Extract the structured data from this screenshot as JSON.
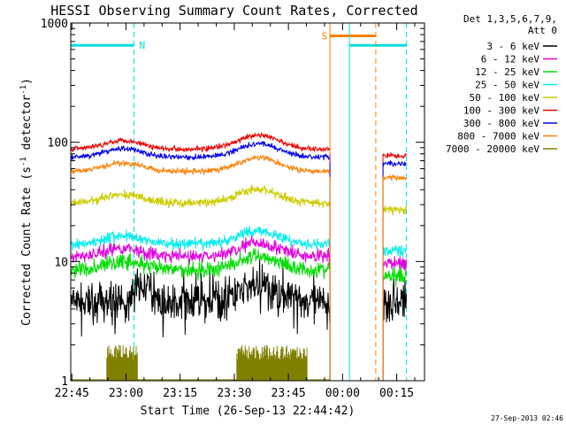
{
  "chart_data": {
    "type": "line",
    "title": "HESSI Observing Summary Count Rates, Corrected",
    "xlabel": "Start Time (26-Sep-13 22:44:42)",
    "ylabel_main": "Corrected Count Rate (s",
    "ylabel_sup1": "-1",
    "ylabel_mid": " detector",
    "ylabel_sup2": "-1",
    "ylabel_end": ")",
    "y_scale": "log",
    "ylim": [
      1,
      1000
    ],
    "xlim_minutes": [
      0,
      98
    ],
    "y_ticks": [
      {
        "value": 1,
        "label": "1"
      },
      {
        "value": 10,
        "label": "10"
      },
      {
        "value": 100,
        "label": "100"
      },
      {
        "value": 1000,
        "label": "1000"
      }
    ],
    "x_ticks": [
      {
        "minute": 0.3,
        "label": "22:45"
      },
      {
        "minute": 15.3,
        "label": "23:00"
      },
      {
        "minute": 30.3,
        "label": "23:15"
      },
      {
        "minute": 45.3,
        "label": "23:30"
      },
      {
        "minute": 60.3,
        "label": "23:45"
      },
      {
        "minute": 75.3,
        "label": "00:00"
      },
      {
        "minute": 90.3,
        "label": "00:15"
      }
    ],
    "legend_header": [
      "Det 1,3,5,6,7,9,",
      "Att 0"
    ],
    "legend_position": "right",
    "series": [
      {
        "name": "3 - 6 keV",
        "color": "#000000",
        "base": 4.5,
        "noise": 0.5
      },
      {
        "name": "6 - 12 keV",
        "color": "#e000e0",
        "base": 11,
        "noise": 0.12
      },
      {
        "name": "12 - 25 keV",
        "color": "#00dd00",
        "base": 8.5,
        "noise": 0.15
      },
      {
        "name": "25 - 50 keV",
        "color": "#00eeee",
        "base": 14,
        "noise": 0.1
      },
      {
        "name": "50 - 100 keV",
        "color": "#cccc00",
        "base": 31,
        "noise": 0.08
      },
      {
        "name": "100 - 300 keV",
        "color": "#ee0000",
        "base": 88,
        "noise": 0.05
      },
      {
        "name": "300 - 800 keV",
        "color": "#0000ee",
        "base": 75,
        "noise": 0.05
      },
      {
        "name": "800 - 7000 keV",
        "color": "#ff7f00",
        "base": 57,
        "noise": 0.05
      },
      {
        "name": "7000 - 20000 keV",
        "color": "#808000",
        "base": 1,
        "noise": 0
      }
    ],
    "annotations": [
      {
        "label": "N",
        "minute": 19,
        "color": "#00dddd"
      },
      {
        "label": "S",
        "minute": 69.5,
        "color": "#ff7f00"
      }
    ],
    "vertical_markers": [
      {
        "minute": 17.5,
        "color": "#00dddd",
        "style": "dashed"
      },
      {
        "minute": 71.8,
        "color": "#ff7f00",
        "style": "solid"
      },
      {
        "minute": 77.2,
        "color": "#00dddd",
        "style": "solid"
      },
      {
        "minute": 84.5,
        "color": "#ff7f00",
        "style": "dashed"
      },
      {
        "minute": 93.0,
        "color": "#00dddd",
        "style": "dashed"
      }
    ],
    "night_bars": [
      {
        "start": 0,
        "end": 17.5,
        "value": 650,
        "color": "#00dddd"
      },
      {
        "start": 77.2,
        "end": 93,
        "value": 650,
        "color": "#00dddd"
      }
    ],
    "saa_bars": [
      {
        "start": 71.8,
        "end": 84.5,
        "value": 780,
        "color": "#ff7f00"
      }
    ],
    "data_gap": [
      71.8,
      86.5
    ],
    "timestamp": "27-Sep-2013 02:46"
  }
}
